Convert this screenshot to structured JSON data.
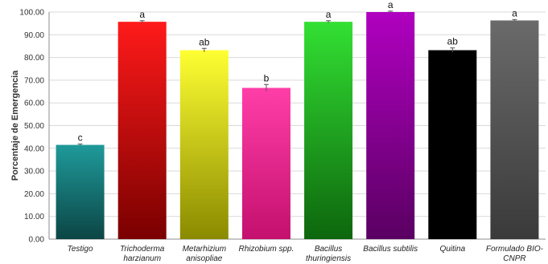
{
  "chart_data": {
    "type": "bar",
    "ylabel": "Porcentaje de Emergencia",
    "ylim": [
      0,
      100
    ],
    "yticks": [
      "0.00",
      "10.00",
      "20.00",
      "30.00",
      "40.00",
      "50.00",
      "60.00",
      "70.00",
      "80.00",
      "90.00",
      "100.00"
    ],
    "grid": true,
    "categories": [
      [
        "Testigo"
      ],
      [
        "Trichoderma",
        "harzianum"
      ],
      [
        "Metarhizium",
        "anisopliae"
      ],
      [
        "Rhizobium spp."
      ],
      [
        "Bacillus",
        "thuringiensis"
      ],
      [
        "Bacillus subtilis"
      ],
      [
        "Quitina"
      ],
      [
        "Formulado BIO-",
        "CNPR"
      ]
    ],
    "values": [
      41.5,
      95.7,
      83.2,
      66.6,
      95.7,
      100.0,
      83.2,
      96.3
    ],
    "errors": [
      0.4,
      0.5,
      0.8,
      1.5,
      0.5,
      0.4,
      1.0,
      0.4
    ],
    "significance": [
      "c",
      "a",
      "ab",
      "b",
      "a",
      "a",
      "ab",
      "a"
    ],
    "colors": [
      [
        "#1f9a9a",
        "#0c4545"
      ],
      [
        "#ff1a1a",
        "#7a0000"
      ],
      [
        "#ffff33",
        "#8a8a00"
      ],
      [
        "#ff3ea8",
        "#c4106e"
      ],
      [
        "#33e033",
        "#0d660d"
      ],
      [
        "#b000c0",
        "#5a0062"
      ],
      [
        "#000000",
        "#000000"
      ],
      [
        "#6a6a6a",
        "#3a3a3a"
      ]
    ]
  }
}
